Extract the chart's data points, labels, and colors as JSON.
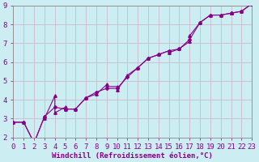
{
  "xlabel": "Windchill (Refroidissement éolien,°C)",
  "bg_color": "#cceef2",
  "line_color": "#880088",
  "grid_color": "#ccbbcc",
  "spine_color": "#888888",
  "tick_label_color": "#880088",
  "bottom_bar_color": "#880088",
  "xmin": 0,
  "xmax": 23,
  "ymin": 2,
  "ymax": 9,
  "series1_x": [
    0,
    1,
    2,
    3,
    3,
    4,
    4,
    5,
    5,
    6,
    7,
    8,
    9,
    9,
    10,
    10,
    11,
    12,
    13,
    14,
    15,
    15,
    16,
    17,
    17,
    18,
    19,
    20,
    21,
    21,
    22,
    23
  ],
  "series1_y": [
    2.8,
    2.8,
    1.7,
    3.1,
    3.0,
    4.2,
    3.3,
    3.6,
    3.5,
    3.5,
    4.1,
    4.3,
    4.8,
    4.7,
    4.7,
    4.5,
    5.3,
    5.7,
    6.2,
    6.4,
    6.6,
    6.5,
    6.7,
    7.1,
    7.4,
    8.1,
    8.5,
    8.5,
    8.6,
    8.6,
    8.7,
    9.1
  ],
  "series2_x": [
    0,
    1,
    2,
    3,
    4,
    5,
    6,
    7,
    8,
    9,
    10,
    11,
    12,
    13,
    14,
    15,
    16,
    17,
    18,
    19,
    20,
    21,
    22,
    23
  ],
  "series2_y": [
    2.8,
    2.8,
    1.7,
    3.1,
    3.6,
    3.5,
    3.5,
    4.1,
    4.4,
    4.6,
    4.6,
    5.2,
    5.7,
    6.2,
    6.4,
    6.6,
    6.7,
    7.2,
    8.1,
    8.5,
    8.5,
    8.6,
    8.7,
    9.1
  ],
  "xlabel_fontsize": 6.5,
  "tick_fontsize": 6.5,
  "marker_size": 2.5,
  "linewidth": 0.8
}
